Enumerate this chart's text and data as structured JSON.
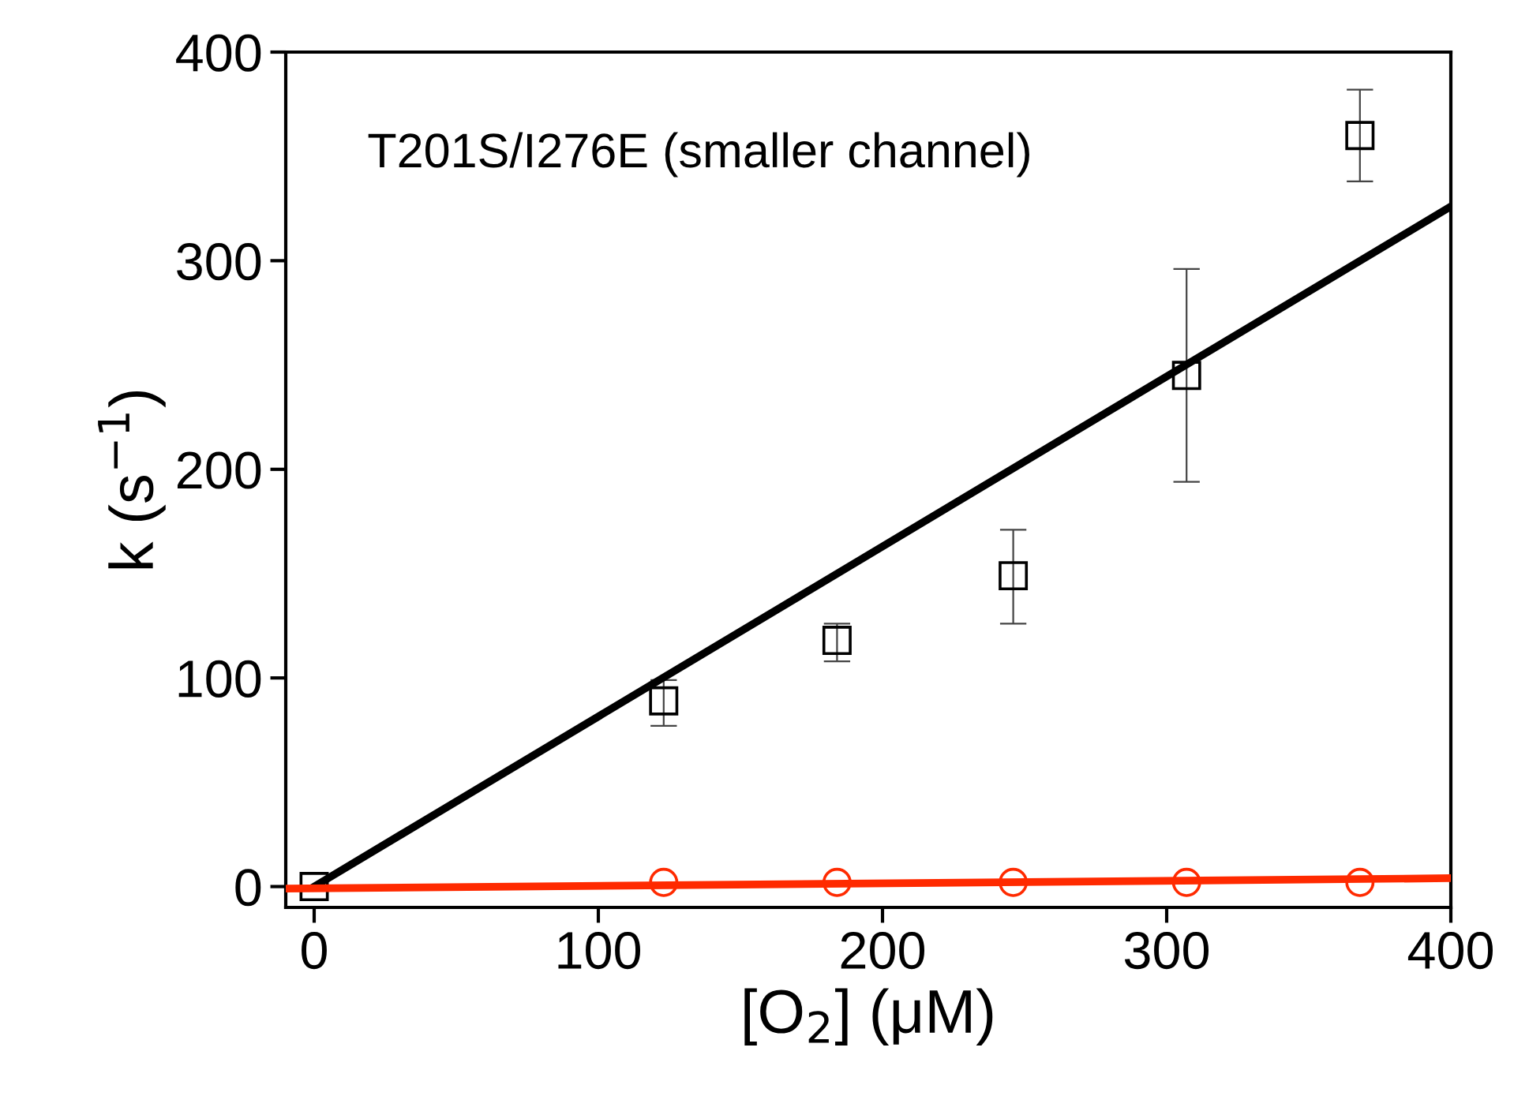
{
  "chart_data": {
    "type": "scatter",
    "xlabel": "[O$_{2}$] (μM)",
    "ylabel": "k (s$^{−1}$)",
    "annotations": [
      "T201S/I276E (smaller channel)"
    ],
    "xlim": [
      -10,
      400
    ],
    "ylim": [
      -10,
      400
    ],
    "xticks": [
      0,
      100,
      200,
      300,
      400
    ],
    "yticks": [
      0,
      100,
      200,
      300,
      400
    ],
    "grid": false,
    "legend": false,
    "series": [
      {
        "color": "#000000",
        "marker": "square",
        "x": [
          0,
          123,
          184,
          246,
          307,
          368
        ],
        "values": [
          0,
          89,
          118,
          149,
          245,
          360
        ],
        "errors": [
          null,
          [
            77,
            99
          ],
          [
            108,
            126
          ],
          [
            126,
            171
          ],
          [
            194,
            296
          ],
          [
            338,
            382
          ]
        ]
      },
      {
        "color": "#ff2a00",
        "marker": "circle",
        "x": [
          123,
          184,
          246,
          307,
          368
        ],
        "values": [
          2,
          2,
          2,
          2,
          2
        ]
      },
      {
        "type": "line",
        "color": "#000000",
        "marker": "none",
        "x": [
          0,
          400
        ],
        "values": [
          0,
          326
        ]
      },
      {
        "type": "line",
        "color": "#ff2a00",
        "marker": "none",
        "x": [
          -10,
          400
        ],
        "values": [
          -1,
          4
        ]
      }
    ]
  }
}
